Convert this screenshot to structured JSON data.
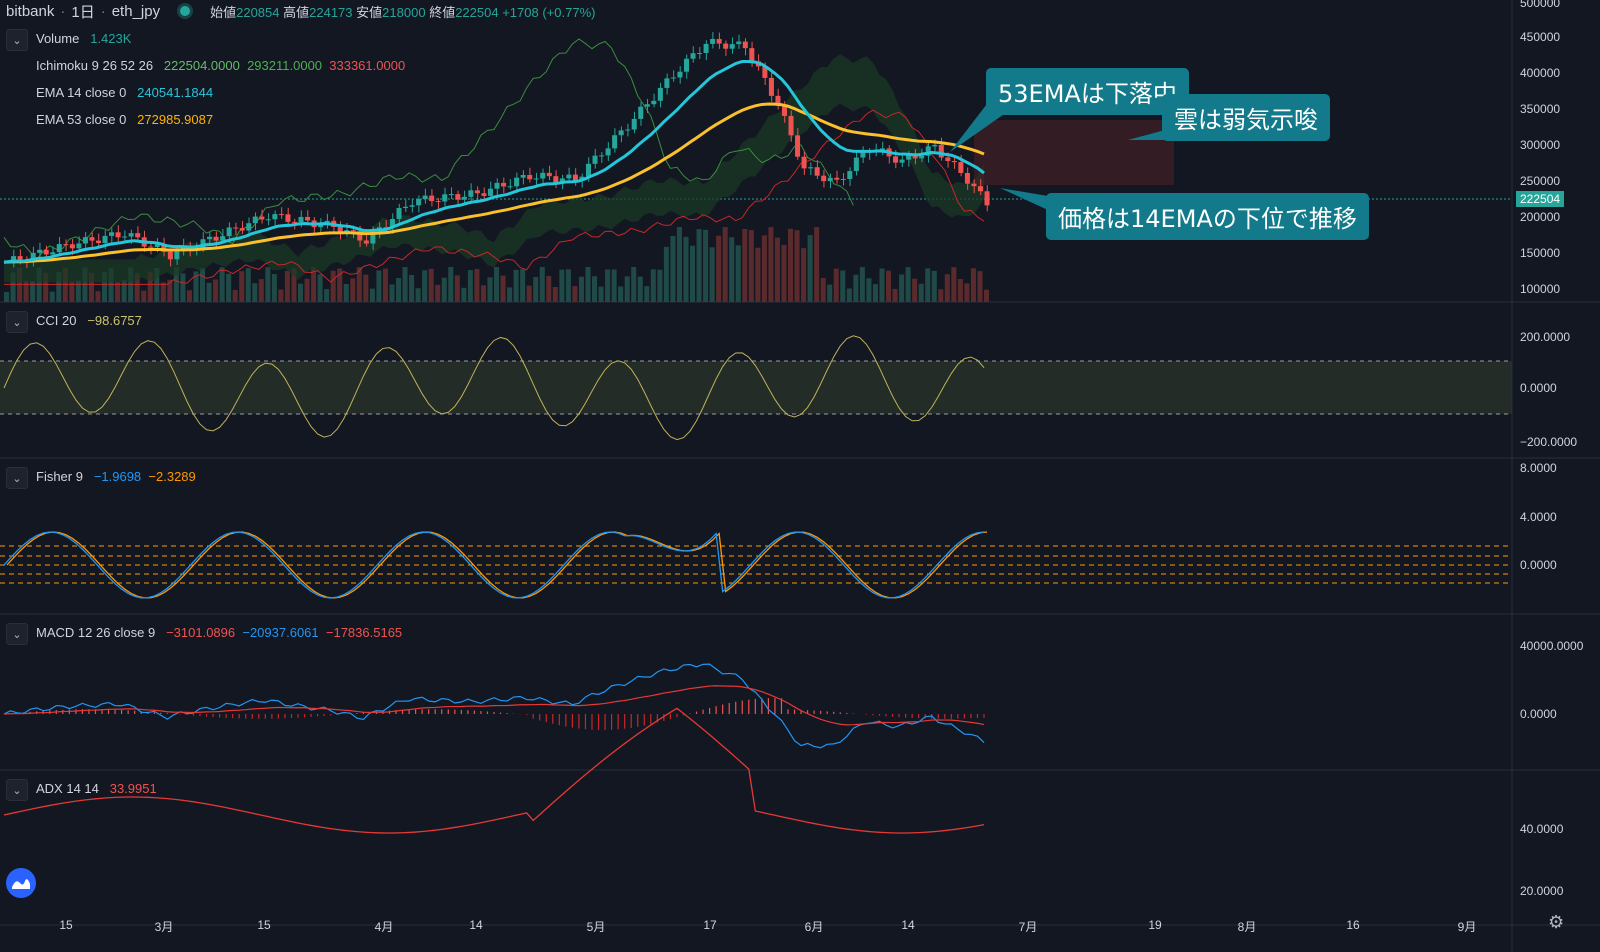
{
  "header": {
    "exchange": "bitbank",
    "interval": "1日",
    "symbol": "eth_jpy",
    "open_label": "始値",
    "open": "220854",
    "high_label": "高値",
    "high": "224173",
    "low_label": "安値",
    "low": "218000",
    "close_label": "終値",
    "close": "222504",
    "change": "+1708 (+0.77%)"
  },
  "legend": {
    "volume_label": "Volume",
    "volume_value": "1.423K",
    "ichimoku_label": "Ichimoku 9 26 52 26",
    "ichimoku_v1": "222504.0000",
    "ichimoku_v2": "293211.0000",
    "ichimoku_v3": "333361.0000",
    "ema14_label": "EMA 14 close 0",
    "ema14_value": "240541.1844",
    "ema53_label": "EMA 53 close 0",
    "ema53_value": "272985.9087"
  },
  "panes": {
    "cci": {
      "label": "CCI 20",
      "value": "−98.6757"
    },
    "fisher": {
      "label": "Fisher 9",
      "v1": "−1.9698",
      "v2": "−2.3289"
    },
    "macd": {
      "label": "MACD 12 26 close 9",
      "v1": "−3101.0896",
      "v2": "−20937.6061",
      "v3": "−17836.5165"
    },
    "adx": {
      "label": "ADX 14 14",
      "value": "33.9951"
    }
  },
  "callouts": {
    "ema53": "53EMAは下落中",
    "cloud": "雲は弱気示唆",
    "price": "価格は14EMAの下位で推移"
  },
  "price_tag": "222504",
  "y_axis": {
    "main": [
      "500000",
      "450000",
      "400000",
      "350000",
      "300000",
      "250000",
      "200000",
      "150000",
      "100000"
    ],
    "cci": [
      "200.0000",
      "0.0000",
      "−200.0000"
    ],
    "fisher": [
      "8.0000",
      "4.0000",
      "0.0000"
    ],
    "macd": [
      "40000.0000",
      "0.0000"
    ],
    "adx": [
      "40.0000",
      "20.0000"
    ]
  },
  "x_axis": [
    "15",
    "3月",
    "15",
    "4月",
    "14",
    "5月",
    "17",
    "6月",
    "14",
    "7月",
    "19",
    "8月",
    "16",
    "9月"
  ],
  "colors": {
    "background": "#131722",
    "up": "#26a69a",
    "down": "#ef5350",
    "ema14": "#26c6da",
    "ema53": "#fbc02d",
    "accent": "#2962ff"
  },
  "icons": {
    "collapse": "chevron-down-icon",
    "logo": "tradingview-logo-icon",
    "settings": "gear-icon"
  }
}
